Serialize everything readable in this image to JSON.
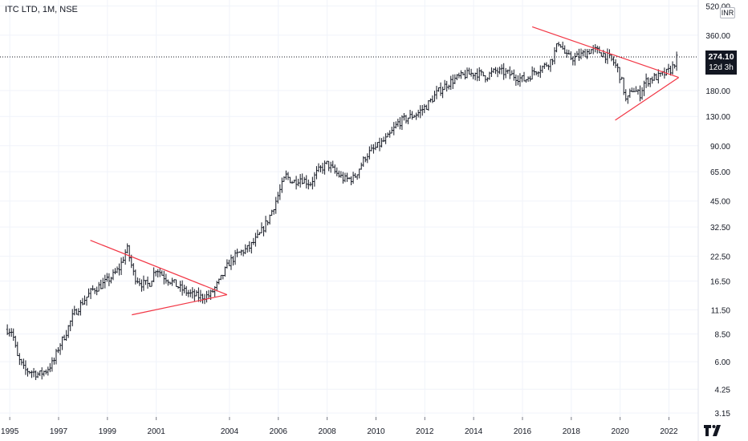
{
  "header": {
    "title": "ITC LTD, 1M, NSE"
  },
  "badge": {
    "price": "274.10",
    "countdown": "12d 3h",
    "currency": "INR"
  },
  "colors": {
    "candle": "#131722",
    "trendline": "#f23645",
    "grid": "#f0f3fa",
    "axis_text": "#131722"
  },
  "chart_data": {
    "type": "candlestick",
    "title": "ITC LTD, 1M, NSE",
    "xlabel": "",
    "ylabel": "",
    "y_scale": "log",
    "last_price": 274.1,
    "x_ticks": [
      "1995",
      "1997",
      "1999",
      "2001",
      "2004",
      "2006",
      "2008",
      "2010",
      "2012",
      "2014",
      "2016",
      "2018",
      "2020",
      "2022"
    ],
    "y_ticks": [
      "520.00",
      "360.00",
      "274.10",
      "180.00",
      "130.00",
      "90.00",
      "65.00",
      "45.00",
      "32.50",
      "22.50",
      "16.50",
      "11.50",
      "8.50",
      "6.00",
      "4.25",
      "3.15"
    ],
    "x_range": [
      1994.6,
      2023.2
    ],
    "y_range": [
      3.0,
      560
    ],
    "price_path": [
      [
        1994.9,
        9.0
      ],
      [
        1995.1,
        8.8
      ],
      [
        1995.3,
        6.4
      ],
      [
        1995.6,
        5.4
      ],
      [
        1995.9,
        5.3
      ],
      [
        1996.2,
        5.1
      ],
      [
        1996.5,
        5.4
      ],
      [
        1996.8,
        6.0
      ],
      [
        1997.0,
        7.2
      ],
      [
        1997.3,
        8.6
      ],
      [
        1997.6,
        10.8
      ],
      [
        1998.0,
        12.8
      ],
      [
        1998.4,
        14.8
      ],
      [
        1998.8,
        15.8
      ],
      [
        1999.2,
        17.5
      ],
      [
        1999.5,
        19.5
      ],
      [
        1999.8,
        25.0
      ],
      [
        2000.1,
        17.5
      ],
      [
        2000.4,
        16.0
      ],
      [
        2000.7,
        15.8
      ],
      [
        2001.0,
        19.5
      ],
      [
        2001.3,
        17.5
      ],
      [
        2001.6,
        16.5
      ],
      [
        2002.0,
        15.0
      ],
      [
        2002.4,
        14.0
      ],
      [
        2002.8,
        13.5
      ],
      [
        2003.2,
        13.8
      ],
      [
        2003.6,
        16.5
      ],
      [
        2004.0,
        21.0
      ],
      [
        2004.4,
        23.5
      ],
      [
        2004.8,
        25.0
      ],
      [
        2005.2,
        29.0
      ],
      [
        2005.6,
        36.0
      ],
      [
        2005.9,
        45.0
      ],
      [
        2006.3,
        62.0
      ],
      [
        2006.6,
        57.0
      ],
      [
        2006.9,
        60.0
      ],
      [
        2007.3,
        56.0
      ],
      [
        2007.6,
        65.0
      ],
      [
        2008.0,
        72.0
      ],
      [
        2008.3,
        65.0
      ],
      [
        2008.7,
        59.0
      ],
      [
        2009.1,
        60.0
      ],
      [
        2009.6,
        80.0
      ],
      [
        2010.0,
        88.0
      ],
      [
        2010.5,
        100.0
      ],
      [
        2010.9,
        120.0
      ],
      [
        2011.3,
        128.0
      ],
      [
        2011.7,
        135.0
      ],
      [
        2012.1,
        150.0
      ],
      [
        2012.5,
        175.0
      ],
      [
        2012.9,
        195.0
      ],
      [
        2013.3,
        210.0
      ],
      [
        2013.7,
        220.0
      ],
      [
        2014.1,
        225.0
      ],
      [
        2014.5,
        215.0
      ],
      [
        2014.9,
        230.0
      ],
      [
        2015.3,
        225.0
      ],
      [
        2015.7,
        215.0
      ],
      [
        2016.1,
        205.0
      ],
      [
        2016.5,
        230.0
      ],
      [
        2016.9,
        245.0
      ],
      [
        2017.2,
        265.0
      ],
      [
        2017.5,
        335.0
      ],
      [
        2017.8,
        275.0
      ],
      [
        2018.1,
        270.0
      ],
      [
        2018.5,
        285.0
      ],
      [
        2018.8,
        300.0
      ],
      [
        2019.1,
        295.0
      ],
      [
        2019.4,
        280.0
      ],
      [
        2019.7,
        260.0
      ],
      [
        2019.9,
        235.0
      ],
      [
        2020.1,
        195.0
      ],
      [
        2020.25,
        155.0
      ],
      [
        2020.5,
        185.0
      ],
      [
        2020.8,
        170.0
      ],
      [
        2021.0,
        200.0
      ],
      [
        2021.3,
        210.0
      ],
      [
        2021.6,
        215.0
      ],
      [
        2021.9,
        225.0
      ],
      [
        2022.1,
        235.0
      ],
      [
        2022.35,
        274.1
      ]
    ],
    "trendlines": [
      {
        "name": "",
        "from": [
          1998.3,
          27.5
        ],
        "to": [
          2003.9,
          13.9
        ]
      },
      {
        "name": "",
        "from": [
          2000.0,
          10.8
        ],
        "to": [
          2003.9,
          13.9
        ]
      },
      {
        "name": "",
        "from": [
          2016.4,
          400.0
        ],
        "to": [
          2022.4,
          212.0
        ]
      },
      {
        "name": "",
        "from": [
          2019.8,
          124.0
        ],
        "to": [
          2022.4,
          212.0
        ]
      }
    ]
  }
}
